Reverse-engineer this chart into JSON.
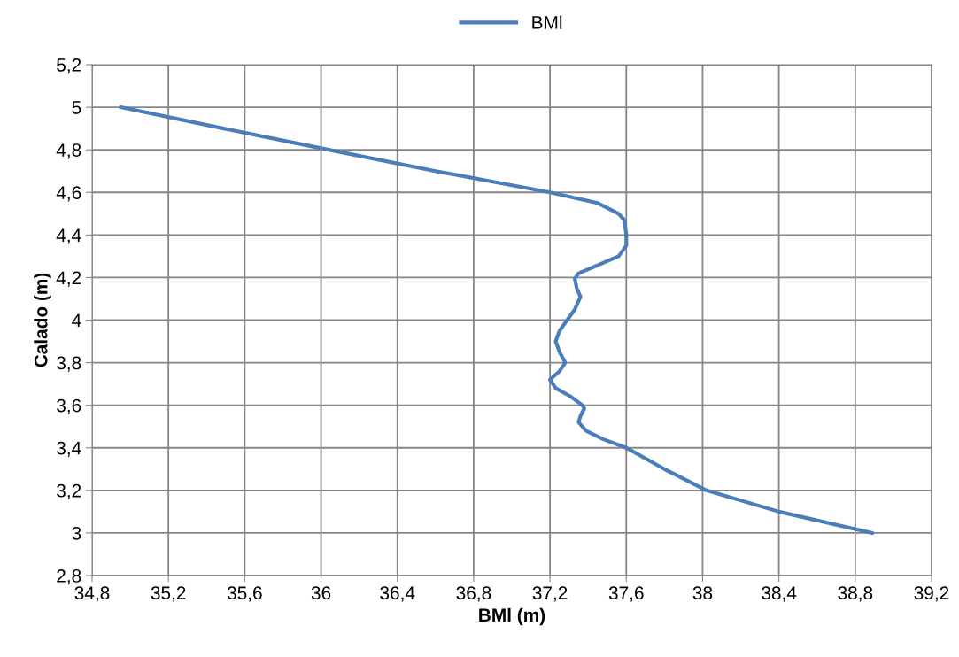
{
  "chart_data": {
    "type": "line",
    "xlabel": "BMl (m)",
    "ylabel": "Calado (m)",
    "series": [
      {
        "name": "BMl",
        "color": "#4a7ebb",
        "x": [
          34.95,
          35.49,
          36.04,
          36.6,
          37.2,
          37.45,
          37.56,
          37.59,
          37.6,
          37.6,
          37.56,
          37.43,
          37.35,
          37.33,
          37.34,
          37.36,
          37.33,
          37.29,
          37.25,
          37.23,
          37.25,
          37.28,
          37.25,
          37.2,
          37.23,
          37.31,
          37.37,
          37.38,
          37.36,
          37.35,
          37.39,
          37.48,
          37.6,
          37.8,
          38.02,
          38.4,
          38.89
        ],
        "values": [
          5.0,
          4.9,
          4.8,
          4.7,
          4.6,
          4.55,
          4.5,
          4.47,
          4.4,
          4.35,
          4.3,
          4.25,
          4.22,
          4.195,
          4.15,
          4.11,
          4.05,
          4.0,
          3.95,
          3.9,
          3.85,
          3.8,
          3.76,
          3.72,
          3.68,
          3.64,
          3.6,
          3.585,
          3.55,
          3.52,
          3.48,
          3.44,
          3.4,
          3.3,
          3.2,
          3.1,
          3.0
        ]
      }
    ],
    "xlim": [
      34.8,
      39.2
    ],
    "xticks": [
      {
        "value": 34.8,
        "label": "34,8"
      },
      {
        "value": 35.2,
        "label": "35,2"
      },
      {
        "value": 35.6,
        "label": "35,6"
      },
      36,
      {
        "value": 36.4,
        "label": "36,4"
      },
      {
        "value": 36.8,
        "label": "36,8"
      },
      {
        "value": 37.2,
        "label": "37,2"
      },
      {
        "value": 37.6,
        "label": "37,6"
      },
      38,
      {
        "value": 38.4,
        "label": "38,4"
      },
      {
        "value": 38.8,
        "label": "38,8"
      },
      {
        "value": 39.2,
        "label": "39,2"
      }
    ],
    "ylim": [
      2.8,
      5.2
    ],
    "yticks": [
      {
        "value": 2.8,
        "label": "2,8"
      },
      3,
      {
        "value": 3.2,
        "label": "3,2"
      },
      {
        "value": 3.4,
        "label": "3,4"
      },
      {
        "value": 3.6,
        "label": "3,6"
      },
      {
        "value": 3.8,
        "label": "3,8"
      },
      4,
      {
        "value": 4.2,
        "label": "4,2"
      },
      {
        "value": 4.4,
        "label": "4,4"
      },
      {
        "value": 4.6,
        "label": "4,6"
      },
      {
        "value": 4.8,
        "label": "4,8"
      },
      5,
      {
        "value": 5.2,
        "label": "5,2"
      }
    ],
    "grid": true,
    "legend": "top",
    "marker": "none",
    "line_style": "solid"
  }
}
